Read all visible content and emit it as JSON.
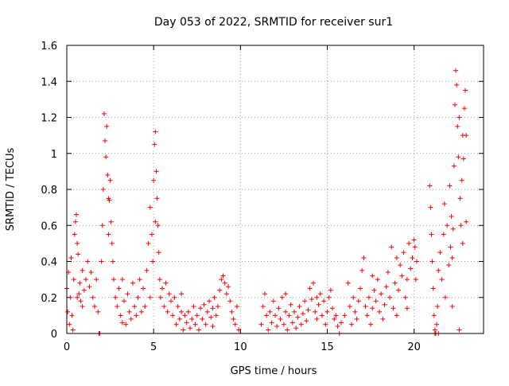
{
  "chart_data": {
    "type": "scatter",
    "title": "Day 053 of 2022, SRMTID for receiver sur1",
    "xlabel": "GPS time / hours",
    "ylabel": "SRMTID / TECUs",
    "xlim": [
      0,
      24
    ],
    "ylim": [
      0,
      1.6
    ],
    "grid": true,
    "marker": "plus",
    "color": "#ff0000",
    "x_ticks": [
      {
        "value": 0,
        "label": "0"
      },
      {
        "value": 5,
        "label": "5"
      },
      {
        "value": 10,
        "label": "10"
      },
      {
        "value": 15,
        "label": "15"
      },
      {
        "value": 20,
        "label": "20"
      }
    ],
    "y_ticks": [
      {
        "value": 0,
        "label": "0"
      },
      {
        "value": 0.2,
        "label": "0.2"
      },
      {
        "value": 0.4,
        "label": "0.4"
      },
      {
        "value": 0.6,
        "label": "0.6"
      },
      {
        "value": 0.8,
        "label": "0.8"
      },
      {
        "value": 1.0,
        "label": "1"
      },
      {
        "value": 1.2,
        "label": "1.2"
      },
      {
        "value": 1.4,
        "label": "1.4"
      },
      {
        "value": 1.6,
        "label": "1.6"
      }
    ],
    "series": [
      {
        "name": "SRMTID",
        "points": [
          [
            0.0,
            0.25
          ],
          [
            0.05,
            0.12
          ],
          [
            0.1,
            0.34
          ],
          [
            0.15,
            0.05
          ],
          [
            0.2,
            0.2
          ],
          [
            0.25,
            0.42
          ],
          [
            0.3,
            0.1
          ],
          [
            0.35,
            0.02
          ],
          [
            0.4,
            0.3
          ],
          [
            0.45,
            0.55
          ],
          [
            0.5,
            0.62
          ],
          [
            0.55,
            0.66
          ],
          [
            0.6,
            0.5
          ],
          [
            0.65,
            0.44
          ],
          [
            0.7,
            0.22
          ],
          [
            0.75,
            0.28
          ],
          [
            0.8,
            0.18
          ],
          [
            0.9,
            0.35
          ],
          [
            1.0,
            0.24
          ],
          [
            1.1,
            0.3
          ],
          [
            1.2,
            0.4
          ],
          [
            1.3,
            0.26
          ],
          [
            1.4,
            0.34
          ],
          [
            1.5,
            0.2
          ],
          [
            1.6,
            0.15
          ],
          [
            1.7,
            0.3
          ],
          [
            1.8,
            0.12
          ],
          [
            1.9,
            0.0
          ],
          [
            2.0,
            0.4
          ],
          [
            2.05,
            0.6
          ],
          [
            2.1,
            0.8
          ],
          [
            2.15,
            1.22
          ],
          [
            2.2,
            1.07
          ],
          [
            2.25,
            0.98
          ],
          [
            2.3,
            1.15
          ],
          [
            2.35,
            0.88
          ],
          [
            2.4,
            0.75
          ],
          [
            2.45,
            0.74
          ],
          [
            2.5,
            0.85
          ],
          [
            2.55,
            0.62
          ],
          [
            2.6,
            0.5
          ],
          [
            2.65,
            0.4
          ],
          [
            2.7,
            0.3
          ],
          [
            2.8,
            0.2
          ],
          [
            2.9,
            0.15
          ],
          [
            3.0,
            0.25
          ],
          [
            3.1,
            0.1
          ],
          [
            3.2,
            0.3
          ],
          [
            3.3,
            0.18
          ],
          [
            3.4,
            0.05
          ],
          [
            3.5,
            0.22
          ],
          [
            3.6,
            0.12
          ],
          [
            3.7,
            0.08
          ],
          [
            3.8,
            0.28
          ],
          [
            3.9,
            0.15
          ],
          [
            4.0,
            0.1
          ],
          [
            4.1,
            0.2
          ],
          [
            4.2,
            0.3
          ],
          [
            4.3,
            0.12
          ],
          [
            4.4,
            0.25
          ],
          [
            4.5,
            0.15
          ],
          [
            4.6,
            0.35
          ],
          [
            4.7,
            0.5
          ],
          [
            4.8,
            0.7
          ],
          [
            4.9,
            0.55
          ],
          [
            4.95,
            0.4
          ],
          [
            5.0,
            0.85
          ],
          [
            5.05,
            1.05
          ],
          [
            5.1,
            1.12
          ],
          [
            5.15,
            0.9
          ],
          [
            5.2,
            0.75
          ],
          [
            5.25,
            0.6
          ],
          [
            5.3,
            0.45
          ],
          [
            5.35,
            0.3
          ],
          [
            5.4,
            0.2
          ],
          [
            5.5,
            0.25
          ],
          [
            5.6,
            0.15
          ],
          [
            5.7,
            0.28
          ],
          [
            5.8,
            0.12
          ],
          [
            5.9,
            0.22
          ],
          [
            6.0,
            0.18
          ],
          [
            6.1,
            0.1
          ],
          [
            6.2,
            0.2
          ],
          [
            6.3,
            0.05
          ],
          [
            6.4,
            0.15
          ],
          [
            6.5,
            0.08
          ],
          [
            6.6,
            0.12
          ],
          [
            6.7,
            0.02
          ],
          [
            6.8,
            0.1
          ],
          [
            6.9,
            0.06
          ],
          [
            7.0,
            0.12
          ],
          [
            7.1,
            0.03
          ],
          [
            7.2,
            0.08
          ],
          [
            7.3,
            0.15
          ],
          [
            7.4,
            0.05
          ],
          [
            7.5,
            0.1
          ],
          [
            7.6,
            0.02
          ],
          [
            7.7,
            0.14
          ],
          [
            7.8,
            0.08
          ],
          [
            7.9,
            0.16
          ],
          [
            8.0,
            0.05
          ],
          [
            8.1,
            0.12
          ],
          [
            8.2,
            0.18
          ],
          [
            8.3,
            0.09
          ],
          [
            8.4,
            0.14
          ],
          [
            8.5,
            0.2
          ],
          [
            8.6,
            0.1
          ],
          [
            8.7,
            0.15
          ],
          [
            8.8,
            0.24
          ],
          [
            8.9,
            0.3
          ],
          [
            9.0,
            0.32
          ],
          [
            9.1,
            0.28
          ],
          [
            9.2,
            0.22
          ],
          [
            9.3,
            0.26
          ],
          [
            9.4,
            0.18
          ],
          [
            9.5,
            0.12
          ],
          [
            9.6,
            0.08
          ],
          [
            9.7,
            0.05
          ],
          [
            9.8,
            0.15
          ],
          [
            9.9,
            0.02
          ],
          [
            11.2,
            0.05
          ],
          [
            11.3,
            0.15
          ],
          [
            11.4,
            0.22
          ],
          [
            11.5,
            0.1
          ],
          [
            11.6,
            0.02
          ],
          [
            11.7,
            0.12
          ],
          [
            11.8,
            0.06
          ],
          [
            11.9,
            0.18
          ],
          [
            12.0,
            0.1
          ],
          [
            12.1,
            0.04
          ],
          [
            12.2,
            0.14
          ],
          [
            12.3,
            0.08
          ],
          [
            12.4,
            0.2
          ],
          [
            12.5,
            0.05
          ],
          [
            12.6,
            0.12
          ],
          [
            12.7,
            0.02
          ],
          [
            12.8,
            0.1
          ],
          [
            12.9,
            0.16
          ],
          [
            13.0,
            0.06
          ],
          [
            13.1,
            0.12
          ],
          [
            13.2,
            0.03
          ],
          [
            13.3,
            0.09
          ],
          [
            13.4,
            0.15
          ],
          [
            13.5,
            0.05
          ],
          [
            13.6,
            0.11
          ],
          [
            13.7,
            0.18
          ],
          [
            13.8,
            0.07
          ],
          [
            13.9,
            0.13
          ],
          [
            14.0,
            0.25
          ],
          [
            14.1,
            0.19
          ],
          [
            14.2,
            0.28
          ],
          [
            14.3,
            0.12
          ],
          [
            14.4,
            0.08
          ],
          [
            14.5,
            0.16
          ],
          [
            14.6,
            0.22
          ],
          [
            14.7,
            0.1
          ],
          [
            14.8,
            0.18
          ],
          [
            14.9,
            0.05
          ],
          [
            15.0,
            0.12
          ],
          [
            15.1,
            0.2
          ],
          [
            15.2,
            0.24
          ],
          [
            15.3,
            0.14
          ],
          [
            15.4,
            0.08
          ],
          [
            15.5,
            0.1
          ],
          [
            15.6,
            0.04
          ],
          [
            15.7,
            0.0
          ],
          [
            15.8,
            0.06
          ],
          [
            16.0,
            0.1
          ],
          [
            16.2,
            0.28
          ],
          [
            16.3,
            0.15
          ],
          [
            16.4,
            0.05
          ],
          [
            16.5,
            0.2
          ],
          [
            16.6,
            0.12
          ],
          [
            16.7,
            0.08
          ],
          [
            16.8,
            0.18
          ],
          [
            16.9,
            0.25
          ],
          [
            17.0,
            0.35
          ],
          [
            17.1,
            0.42
          ],
          [
            17.2,
            0.15
          ],
          [
            17.3,
            0.1
          ],
          [
            17.4,
            0.2
          ],
          [
            17.5,
            0.05
          ],
          [
            17.6,
            0.14
          ],
          [
            17.7,
            0.24
          ],
          [
            17.8,
            0.18
          ],
          [
            17.9,
            0.3
          ],
          [
            18.0,
            0.12
          ],
          [
            18.1,
            0.22
          ],
          [
            18.2,
            0.08
          ],
          [
            18.3,
            0.16
          ],
          [
            18.4,
            0.26
          ],
          [
            18.5,
            0.34
          ],
          [
            18.6,
            0.2
          ],
          [
            18.7,
            0.48
          ],
          [
            18.8,
            0.14
          ],
          [
            18.9,
            0.28
          ],
          [
            19.0,
            0.1
          ],
          [
            19.1,
            0.24
          ],
          [
            19.2,
            0.38
          ],
          [
            19.3,
            0.32
          ],
          [
            19.4,
            0.45
          ],
          [
            19.5,
            0.2
          ],
          [
            19.6,
            0.14
          ],
          [
            19.7,
            0.5
          ],
          [
            19.8,
            0.36
          ],
          [
            19.9,
            0.42
          ],
          [
            20.0,
            0.52
          ],
          [
            20.05,
            0.48
          ],
          [
            20.1,
            0.3
          ],
          [
            20.15,
            0.4
          ],
          [
            20.9,
            0.82
          ],
          [
            20.95,
            0.7
          ],
          [
            21.0,
            0.55
          ],
          [
            21.05,
            0.4
          ],
          [
            21.1,
            0.25
          ],
          [
            21.15,
            0.1
          ],
          [
            21.2,
            0.02
          ],
          [
            21.25,
            0.0
          ],
          [
            21.3,
            0.05
          ],
          [
            21.35,
            0.15
          ],
          [
            21.4,
            0.35
          ],
          [
            21.5,
            0.45
          ],
          [
            21.6,
            0.3
          ],
          [
            21.7,
            0.55
          ],
          [
            21.75,
            0.72
          ],
          [
            21.8,
            0.2
          ],
          [
            21.9,
            0.6
          ],
          [
            22.0,
            0.38
          ],
          [
            22.05,
            0.82
          ],
          [
            22.1,
            0.48
          ],
          [
            22.15,
            0.65
          ],
          [
            22.2,
            0.15
          ],
          [
            22.25,
            0.58
          ],
          [
            22.3,
            0.93
          ],
          [
            22.35,
            1.27
          ],
          [
            22.4,
            1.46
          ],
          [
            22.45,
            1.38
          ],
          [
            22.5,
            1.15
          ],
          [
            22.55,
            0.98
          ],
          [
            22.6,
            1.2
          ],
          [
            22.65,
            0.75
          ],
          [
            22.7,
            0.6
          ],
          [
            22.75,
            0.85
          ],
          [
            22.8,
            1.1
          ],
          [
            22.85,
            0.97
          ],
          [
            22.9,
            1.25
          ],
          [
            22.95,
            1.35
          ],
          [
            23.0,
            1.1
          ],
          [
            22.6,
            0.02
          ],
          [
            22.8,
            0.5
          ],
          [
            1.85,
            0.0
          ],
          [
            21.2,
            0.0
          ],
          [
            21.4,
            0.0
          ],
          [
            0.6,
            0.2
          ],
          [
            0.9,
            0.15
          ],
          [
            3.2,
            0.06
          ],
          [
            4.8,
            0.2
          ],
          [
            6.6,
            0.22
          ],
          [
            8.4,
            0.04
          ],
          [
            12.6,
            0.22
          ],
          [
            14.4,
            0.2
          ],
          [
            17.6,
            0.32
          ],
          [
            19.0,
            0.42
          ],
          [
            19.6,
            0.3
          ],
          [
            2.4,
            0.55
          ],
          [
            5.1,
            0.62
          ],
          [
            22.2,
            0.42
          ],
          [
            23.0,
            0.62
          ]
        ]
      }
    ]
  }
}
